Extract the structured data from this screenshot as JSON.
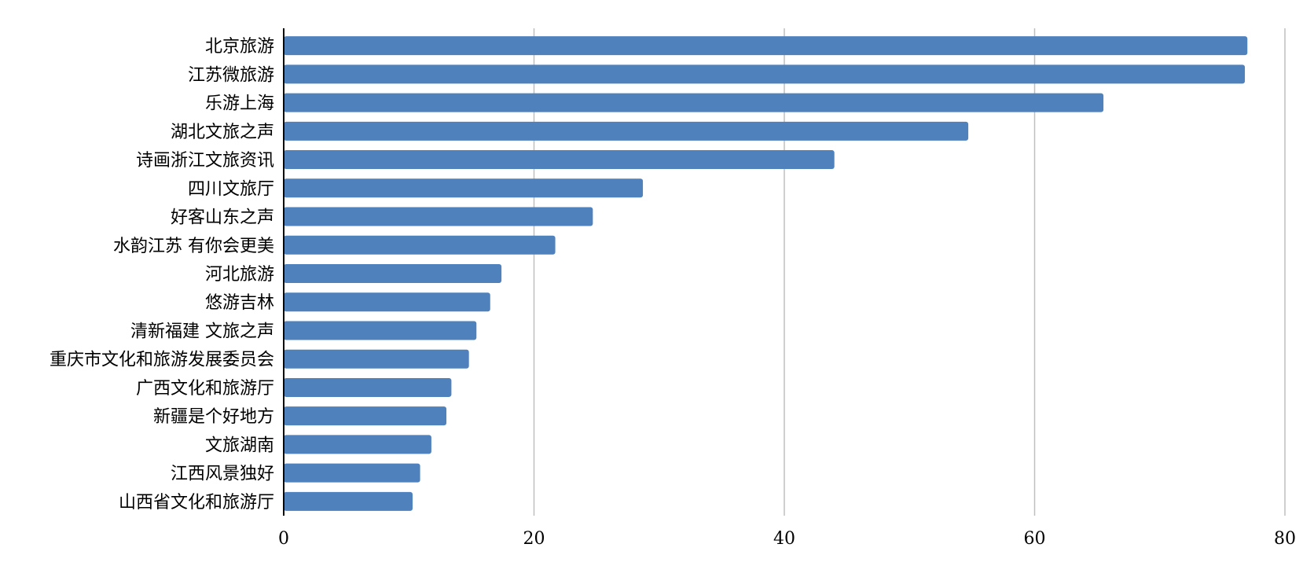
{
  "chart_data": {
    "type": "bar",
    "orientation": "horizontal",
    "title": "",
    "xlabel": "",
    "ylabel": "",
    "xlim": [
      0,
      80
    ],
    "x_ticks": [
      "0",
      "20",
      "40",
      "60",
      "80"
    ],
    "grid": true,
    "legend": "none",
    "bar_color": "#4F81BD",
    "categories": [
      "北京旅游",
      "江苏微旅游",
      "乐游上海",
      "湖北文旅之声",
      "诗画浙江文旅资讯",
      "四川文旅厅",
      "好客山东之声",
      "水韵江苏 有你会更美",
      "河北旅游",
      "悠游吉林",
      "清新福建 文旅之声",
      "重庆市文化和旅游发展委员会",
      "广西文化和旅游厅",
      "新疆是个好地方",
      "文旅湖南",
      "江西风景独好",
      "山西省文化和旅游厅"
    ],
    "values": [
      77.0,
      76.8,
      65.5,
      54.7,
      44.0,
      28.7,
      24.7,
      21.7,
      17.4,
      16.5,
      15.4,
      14.8,
      13.4,
      13.0,
      11.8,
      10.9,
      10.3
    ]
  }
}
